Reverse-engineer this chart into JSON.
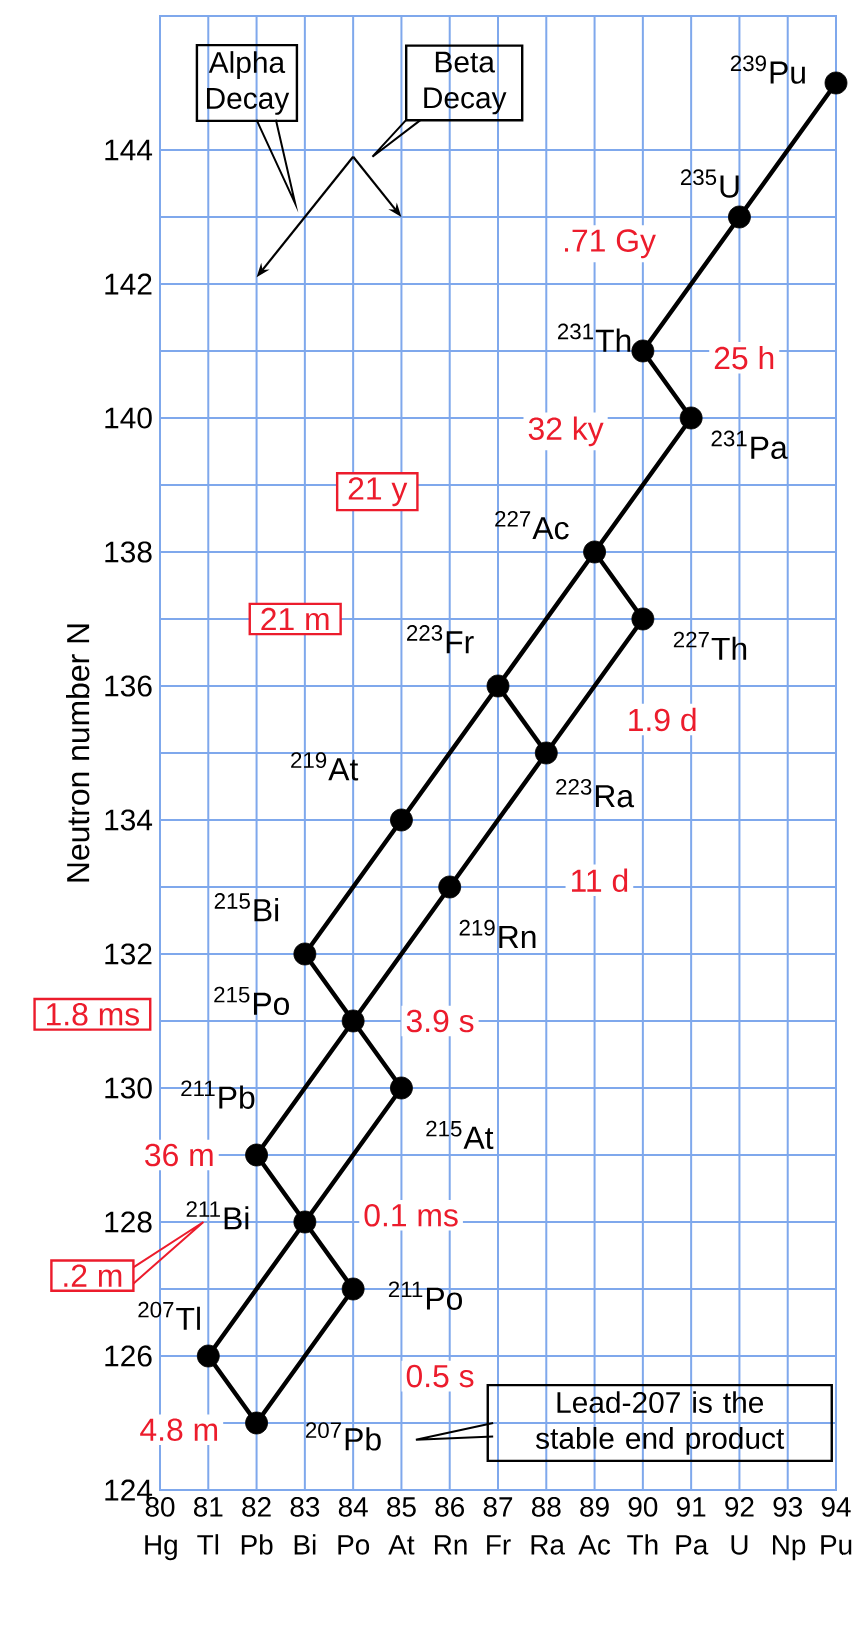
{
  "chart_data": {
    "type": "line",
    "ylabel": "Neutron number N",
    "xlim": [
      80,
      94
    ],
    "ylim": [
      124,
      146
    ],
    "xticks": [
      {
        "value": 80,
        "label": "80 Hg"
      },
      {
        "value": 81,
        "label": "81 Tl"
      },
      {
        "value": 82,
        "label": "82 Pb"
      },
      {
        "value": 83,
        "label": "83 Bi"
      },
      {
        "value": 84,
        "label": "84 Po"
      },
      {
        "value": 85,
        "label": "85 At"
      },
      {
        "value": 86,
        "label": "86 Rn"
      },
      {
        "value": 87,
        "label": "87 Fr"
      },
      {
        "value": 88,
        "label": "88 Ra"
      },
      {
        "value": 89,
        "label": "89 Ac"
      },
      {
        "value": 90,
        "label": "90 Th"
      },
      {
        "value": 91,
        "label": "91 Pa"
      },
      {
        "value": 92,
        "label": "92 U"
      },
      {
        "value": 93,
        "label": "93 Np"
      },
      {
        "value": 94,
        "label": "94 Pu"
      }
    ],
    "yticks": [
      124,
      126,
      128,
      130,
      132,
      134,
      136,
      138,
      140,
      142,
      144
    ],
    "grid": true,
    "series": [
      {
        "color": "#000000",
        "line_style": "solid",
        "x": [
          94,
          92,
          90,
          91,
          89,
          90,
          88,
          86,
          84,
          82,
          83,
          81,
          82
        ],
        "values": [
          145,
          143,
          141,
          140,
          138,
          137,
          135,
          133,
          131,
          129,
          128,
          126,
          125
        ]
      },
      {
        "color": "#000000",
        "line_style": "solid",
        "x": [
          89,
          87,
          85,
          83,
          84,
          85,
          83,
          84,
          82
        ],
        "values": [
          138,
          136,
          134,
          132,
          131,
          130,
          128,
          127,
          125
        ]
      },
      {
        "color": "#000000",
        "line_style": "solid",
        "x": [
          87,
          88
        ],
        "values": [
          136,
          135
        ]
      },
      {
        "type": "scatter",
        "color": "#000000",
        "x": [
          94,
          92,
          90,
          91,
          89,
          90,
          87,
          88,
          85,
          86,
          83,
          84,
          85,
          82,
          83,
          84,
          81,
          82
        ],
        "values": [
          145,
          143,
          141,
          140,
          138,
          137,
          136,
          135,
          134,
          133,
          132,
          131,
          130,
          129,
          128,
          127,
          126,
          125
        ]
      }
    ],
    "annotations": [
      "Alpha Decay",
      "Beta Decay",
      "Lead-207 is the stable end product",
      ".71 Gy",
      "25 h",
      "32 ky",
      "21 y",
      "21 m",
      "1.9 d",
      "11 d",
      "3.9 s",
      "1.8 ms",
      "36 m",
      "0.1 ms",
      ".2 m",
      "0.5 s",
      "4.8 m",
      {
        "text": "$^{239}$Pu",
        "x": 94,
        "y": 145
      },
      {
        "text": "$^{235}$U",
        "x": 92,
        "y": 143
      },
      {
        "text": "$^{231}$Th",
        "x": 90,
        "y": 141
      },
      {
        "text": "$^{231}$Pa",
        "x": 91,
        "y": 140
      },
      {
        "text": "$^{227}$Ac",
        "x": 89,
        "y": 138
      },
      {
        "text": "$^{227}$Th",
        "x": 90,
        "y": 137
      },
      {
        "text": "$^{223}$Fr",
        "x": 87,
        "y": 136
      },
      {
        "text": "$^{223}$Ra",
        "x": 88,
        "y": 135
      },
      {
        "text": "$^{219}$At",
        "x": 85,
        "y": 134
      },
      {
        "text": "$^{219}$Rn",
        "x": 86,
        "y": 133
      },
      {
        "text": "$^{215}$Bi",
        "x": 83,
        "y": 132
      },
      {
        "text": "$^{215}$Po",
        "x": 84,
        "y": 131
      },
      {
        "text": "$^{215}$At",
        "x": 85,
        "y": 130
      },
      {
        "text": "$^{211}$Pb",
        "x": 82,
        "y": 129
      },
      {
        "text": "$^{211}$Bi",
        "x": 83,
        "y": 128
      },
      {
        "text": "$^{211}$Po",
        "x": 84,
        "y": 127
      },
      {
        "text": "$^{207}$Tl",
        "x": 81,
        "y": 126
      },
      {
        "text": "$^{207}$Pb",
        "x": 82,
        "y": 125
      }
    ]
  }
}
